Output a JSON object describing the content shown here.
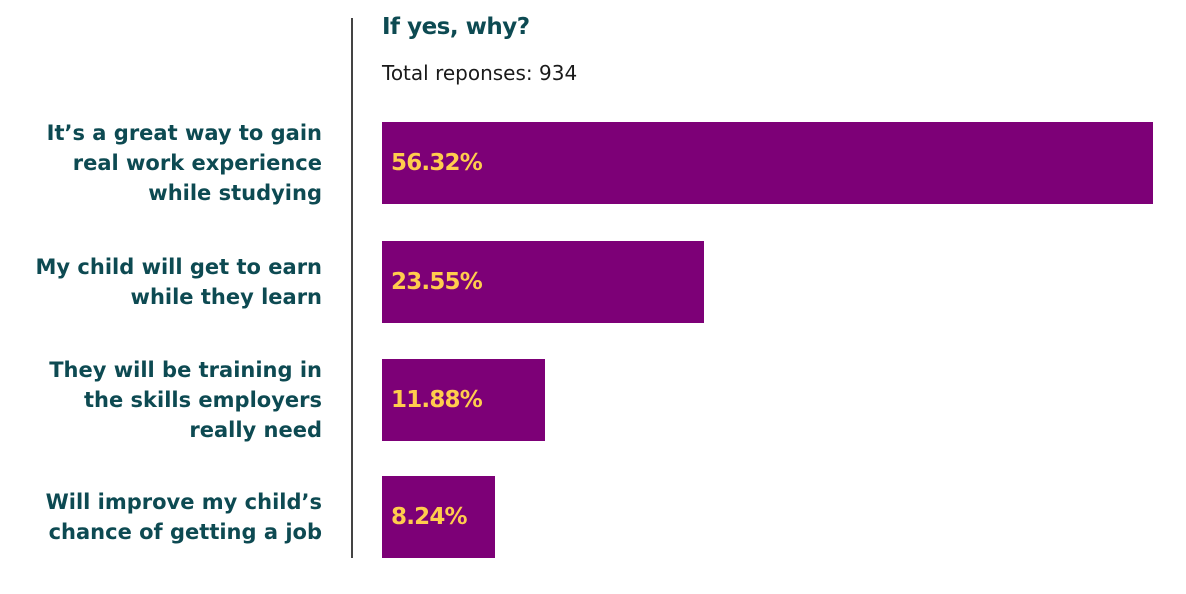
{
  "chart_data": {
    "type": "bar",
    "orientation": "horizontal",
    "title": "If yes, why?",
    "subtitle": "Total reponses: 934",
    "categories": [
      "It’s a great way to gain\nreal work experience\nwhile studying",
      "My child will get to earn\nwhile they learn",
      "They will be training in\nthe skills employers\nreally need",
      "Will improve my child’s\nchance of getting a job"
    ],
    "values": [
      56.32,
      23.55,
      11.88,
      8.24
    ],
    "data_labels": [
      "56.32%",
      "23.55%",
      "11.88%",
      "8.24%"
    ],
    "unit": "%",
    "xlim": [
      0,
      56.32
    ],
    "grid": false,
    "legend": "none"
  },
  "colors": {
    "bar": "#7d0077",
    "data_label": "#ffcc4d",
    "category_label": "#0d4a52",
    "title": "#0d4a52",
    "subtitle": "#1a1a1a",
    "axis": "#444444"
  }
}
